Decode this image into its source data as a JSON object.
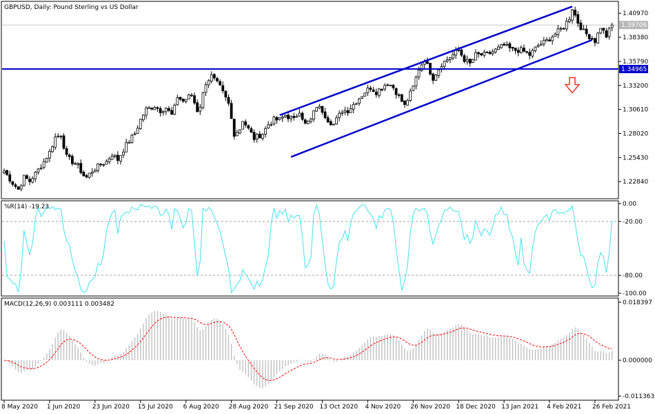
{
  "colors": {
    "background": "#ffffff",
    "frame": "#000000",
    "candle": "#000000",
    "channel": "#0000cc",
    "support": "#0000cc",
    "wpr_line": "#40e0f0",
    "macd_hist": "#c0c0c0",
    "signal": "#ff0000",
    "arrow": "#e8301e",
    "current_price_tag": "#b8b8b8",
    "level_tag": "#0000cc"
  },
  "chart_data": [
    {
      "type": "candlestick",
      "title": "GBPUSD, Daily:  Pound Sterling vs US Dollar",
      "ylim": [
        1.21,
        1.4225
      ],
      "y_ticks": [
        "1.40970",
        "1.38380",
        "1.35790",
        "1.33200",
        "1.30610",
        "1.28020",
        "1.25430",
        "1.22840"
      ],
      "current_price": "1.39706",
      "horizontal_level": "1.34965",
      "channel_upper": {
        "from": [
          20,
          1.3
        ],
        "to": [
          200,
          1.417
        ]
      },
      "channel_lower": {
        "from": [
          20,
          1.255
        ],
        "to": [
          207,
          1.381
        ]
      },
      "annotation": "down-arrow",
      "annotation_position": [
        200,
        1.33
      ],
      "series": [
        {
          "name": "close",
          "waypoints_index": [
            0,
            3,
            5,
            7,
            9,
            12,
            14,
            16,
            18,
            20,
            22,
            24,
            26,
            28,
            29,
            31,
            34,
            36,
            38,
            40,
            43,
            46,
            48,
            50,
            53,
            55,
            57,
            59,
            60,
            61,
            63,
            66,
            68,
            69,
            71,
            73,
            76,
            79,
            81,
            83,
            84,
            87,
            88,
            91,
            93,
            95,
            97,
            99,
            102,
            104,
            106,
            108,
            110,
            112,
            114,
            116,
            119,
            121,
            124,
            127,
            129,
            131,
            133,
            135,
            137,
            139,
            141,
            144,
            146,
            148,
            151,
            154,
            156,
            158,
            160,
            162,
            164,
            166,
            170,
            173,
            176,
            179,
            182,
            185,
            188,
            191,
            193,
            195,
            197,
            199,
            200,
            202,
            204,
            206,
            208,
            210,
            212,
            214
          ],
          "waypoints_close": [
            1.24,
            1.227,
            1.22,
            1.233,
            1.229,
            1.241,
            1.25,
            1.26,
            1.276,
            1.279,
            1.255,
            1.25,
            1.245,
            1.235,
            1.233,
            1.24,
            1.247,
            1.25,
            1.258,
            1.252,
            1.268,
            1.28,
            1.295,
            1.306,
            1.31,
            1.305,
            1.308,
            1.3,
            1.308,
            1.32,
            1.315,
            1.322,
            1.305,
            1.31,
            1.335,
            1.342,
            1.33,
            1.312,
            1.28,
            1.285,
            1.295,
            1.28,
            1.275,
            1.28,
            1.29,
            1.295,
            1.295,
            1.3,
            1.295,
            1.305,
            1.29,
            1.295,
            1.31,
            1.305,
            1.295,
            1.29,
            1.305,
            1.305,
            1.315,
            1.325,
            1.33,
            1.325,
            1.33,
            1.335,
            1.33,
            1.32,
            1.31,
            1.33,
            1.35,
            1.36,
            1.34,
            1.355,
            1.36,
            1.365,
            1.37,
            1.36,
            1.355,
            1.365,
            1.365,
            1.37,
            1.375,
            1.37,
            1.37,
            1.365,
            1.375,
            1.38,
            1.385,
            1.39,
            1.395,
            1.405,
            1.415,
            1.4,
            1.39,
            1.385,
            1.38,
            1.395,
            1.385,
            1.3971
          ]
        }
      ]
    },
    {
      "type": "line",
      "title": "%R(14) -19.23",
      "ylim": [
        -100,
        0
      ],
      "y_ticks": [
        "0.00",
        "-20.00",
        "-80.00",
        "-100.00"
      ],
      "levels": [
        -20,
        -80
      ],
      "series": [
        {
          "name": "%R(14)",
          "computed_from": "close",
          "period": 14
        }
      ]
    },
    {
      "type": "bar",
      "title": "MACD(12,26,9) 0.003111 0.003482",
      "ylim": [
        -0.011363,
        0.018397
      ],
      "y_ticks": [
        "0.018397",
        "0.000000",
        "-0.011363"
      ],
      "series": [
        {
          "name": "MACD",
          "kind": "histogram",
          "fast": 12,
          "slow": 26
        },
        {
          "name": "Signal",
          "kind": "dashed-line",
          "period": 9
        }
      ]
    }
  ],
  "x_axis": {
    "labels": [
      {
        "text": "8 May 2020",
        "index": 0
      },
      {
        "text": "1 Jun 2020",
        "index": 16
      },
      {
        "text": "23 Jun 2020",
        "index": 32
      },
      {
        "text": "15 Jul 2020",
        "index": 48
      },
      {
        "text": "6 Aug 2020",
        "index": 64
      },
      {
        "text": "28 Aug 2020",
        "index": 80
      },
      {
        "text": "21 Sep 2020",
        "index": 96
      },
      {
        "text": "13 Oct 2020",
        "index": 112
      },
      {
        "text": "4 Nov 2020",
        "index": 128
      },
      {
        "text": "26 Nov 2020",
        "index": 144
      },
      {
        "text": "18 Dec 2020",
        "index": 160
      },
      {
        "text": "13 Jan 2021",
        "index": 176
      },
      {
        "text": "4 Feb 2021",
        "index": 192
      },
      {
        "text": "26 Feb 2021",
        "index": 208
      }
    ]
  }
}
